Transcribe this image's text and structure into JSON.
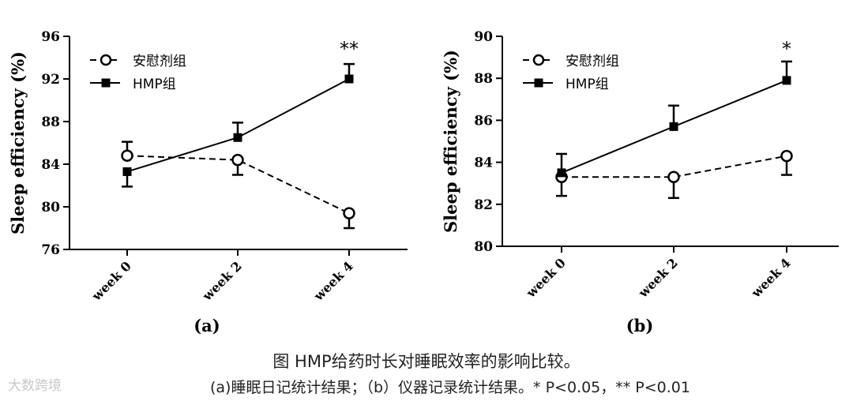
{
  "chart_data": [
    {
      "type": "line",
      "panel_label": "(a)",
      "ylabel": "Sleep efficiency (%)",
      "xlabel": "",
      "categories": [
        "week 0",
        "week 2",
        "week 4"
      ],
      "ylim": [
        76,
        96
      ],
      "yticks": [
        76,
        80,
        84,
        88,
        92,
        96
      ],
      "legend_position": "top-left",
      "series": [
        {
          "name": "安慰剂组",
          "values": [
            84.8,
            84.4,
            79.4
          ],
          "errors": [
            1.3,
            1.4,
            1.4
          ],
          "marker": "open-circle",
          "line": "dashed"
        },
        {
          "name": "HMP组",
          "values": [
            83.3,
            86.5,
            92.0
          ],
          "errors": [
            1.4,
            1.4,
            1.4
          ],
          "marker": "filled-square",
          "line": "solid"
        }
      ],
      "annotations": [
        {
          "category": "week 4",
          "text": "**"
        }
      ]
    },
    {
      "type": "line",
      "panel_label": "(b)",
      "ylabel": "Sleep efficiency (%)",
      "xlabel": "",
      "categories": [
        "week 0",
        "week 2",
        "week 4"
      ],
      "ylim": [
        80,
        90
      ],
      "yticks": [
        80,
        82,
        84,
        86,
        88,
        90
      ],
      "legend_position": "top-left",
      "series": [
        {
          "name": "安慰剂组",
          "values": [
            83.3,
            83.3,
            84.3
          ],
          "errors": [
            0.9,
            1.0,
            0.9
          ],
          "marker": "open-circle",
          "line": "dashed"
        },
        {
          "name": "HMP组",
          "values": [
            83.5,
            85.7,
            87.9
          ],
          "errors": [
            0.9,
            1.0,
            0.9
          ],
          "marker": "filled-square",
          "line": "solid"
        }
      ],
      "annotations": [
        {
          "category": "week 4",
          "text": "*"
        }
      ]
    }
  ],
  "caption": {
    "title": "图 HMP给药时长对睡眠效率的影响比较。",
    "note": "(a)睡眠日记统计结果；（b）仪器记录统计结果。* P<0.05，** P<0.01"
  },
  "watermark": "大数跨境"
}
